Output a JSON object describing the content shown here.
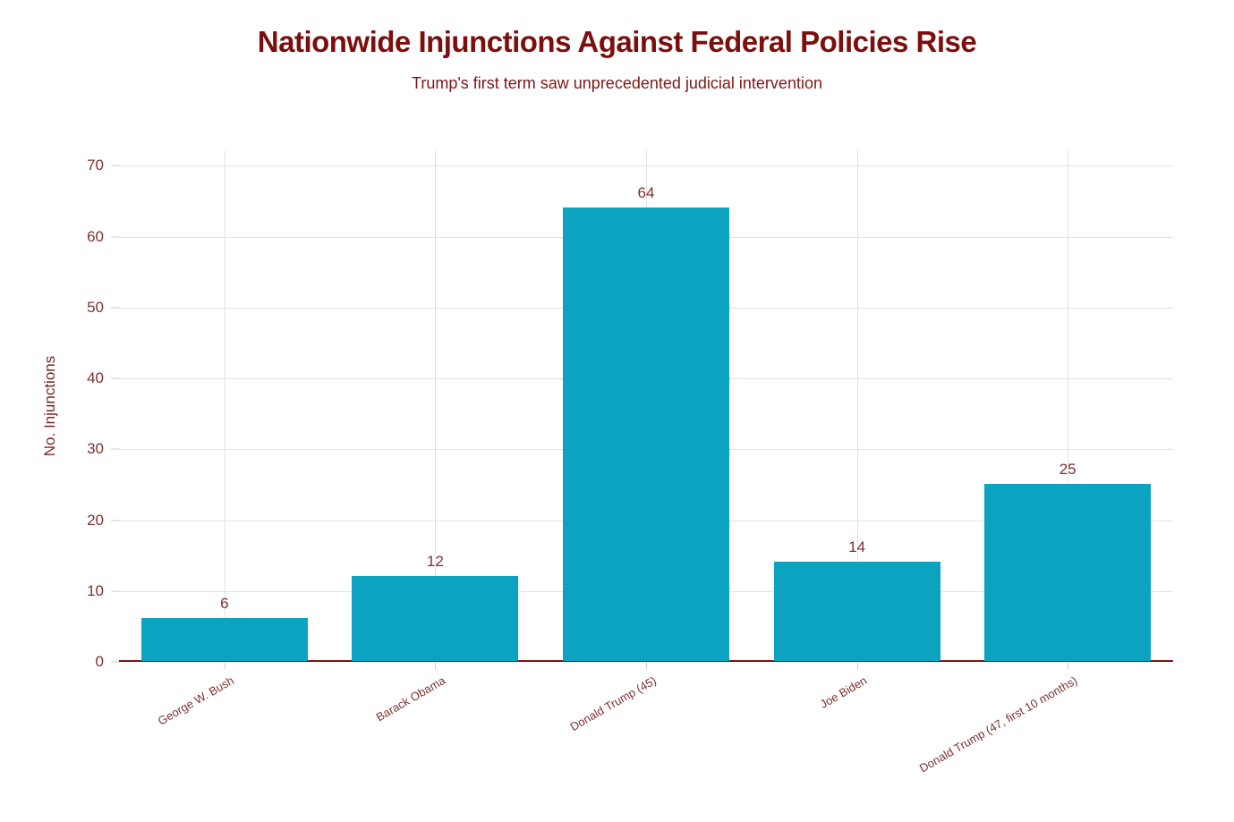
{
  "chart_data": {
    "type": "bar",
    "title": "Nationwide Injunctions Against Federal Policies Rise",
    "subtitle": "Trump's first term saw unprecedented judicial intervention",
    "ylabel": "No. Injunctions",
    "xlabel": "",
    "categories": [
      "George W. Bush",
      "Barack Obama",
      "Donald Trump (45)",
      "Joe Biden",
      "Donald Trump (47, first 10 months)"
    ],
    "values": [
      6,
      12,
      64,
      14,
      25
    ],
    "value_labels": [
      "6",
      "12",
      "64",
      "14",
      "25"
    ],
    "yticks": [
      0,
      10,
      20,
      30,
      40,
      50,
      60,
      70
    ],
    "ylim": [
      0,
      72.2
    ],
    "grid": "horizontal and vertical, light gray",
    "legend_position": "none",
    "x_tick_rotation_deg": 30,
    "colors": {
      "bar": "#0ba3bf",
      "title": "#7d0e0e",
      "subtitle": "#7e1616",
      "ylabel_text": "#7c1f1f",
      "axis_text": "#7d3030",
      "value_label_text": "#7d3030",
      "axis_line": "#7a1414",
      "gridline": "#e3e1e1",
      "tick_mark": "#cdc9c9",
      "background": "#ffffff"
    }
  }
}
